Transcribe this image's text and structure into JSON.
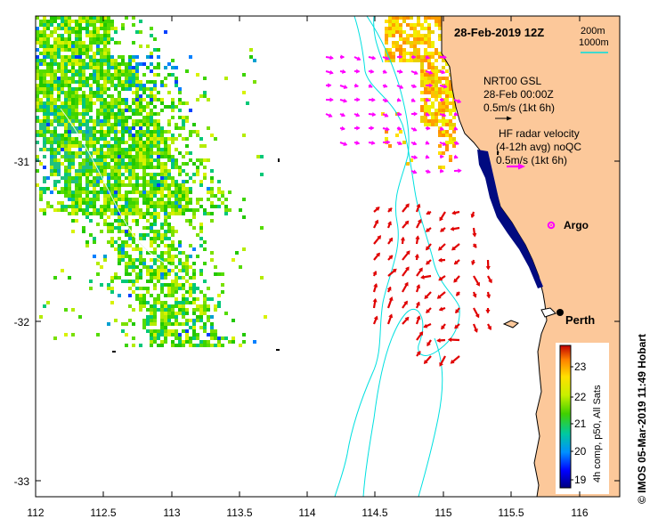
{
  "map": {
    "title": "28-Feb-2019 12Z",
    "depth_legend": {
      "line1": "200m",
      "line2": "1000m"
    },
    "gsl": {
      "line1": "NRT00 GSL",
      "line2": "28-Feb 00:00Z",
      "line3": "0.5m/s (1kt 6h)"
    },
    "hf_radar": {
      "line1": "HF radar velocity",
      "line2": "(4-12h avg) noQC",
      "line3": "0.5m/s (1kt 6h)"
    },
    "places": {
      "argo": "Argo",
      "perth": "Perth"
    },
    "x_ticks": [
      "112",
      "112.5",
      "113",
      "113.5",
      "114",
      "114.5",
      "115",
      "115.5",
      "116"
    ],
    "y_ticks": [
      "-31",
      "-32",
      "-33"
    ],
    "colorbar": {
      "ticks": [
        "23",
        "22",
        "21",
        "20",
        "19"
      ],
      "label": "4h comp, p50, All Sats"
    },
    "credit": "© IMOS 05-Mar-2019 11:49 Hobart",
    "colors": {
      "land": "#fcc89a",
      "shelf_contour": "#00e0e0",
      "hf_arrow": "#e00000",
      "gsl_arrow": "#ff00ff"
    }
  }
}
